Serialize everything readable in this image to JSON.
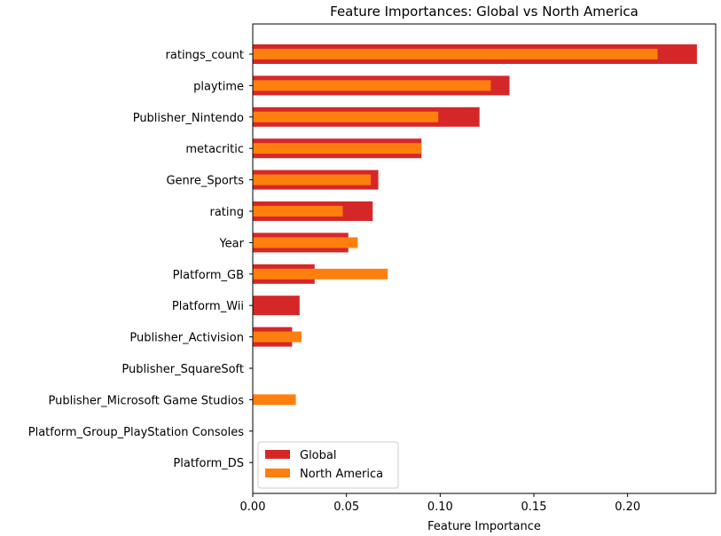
{
  "chart_data": {
    "type": "bar",
    "orientation": "horizontal",
    "title": "Feature Importances: Global vs North America",
    "xlabel": "Feature Importance",
    "ylabel": "",
    "xlim": [
      0,
      0.247
    ],
    "xticks": [
      "0.00",
      "0.05",
      "0.10",
      "0.15",
      "0.20"
    ],
    "xtick_values": [
      0,
      0.05,
      0.1,
      0.15,
      0.2
    ],
    "grid": false,
    "legend_position": "lower-left",
    "categories": [
      "ratings_count",
      "playtime",
      "Publisher_Nintendo",
      "metacritic",
      "Genre_Sports",
      "rating",
      "Year",
      "Platform_GB",
      "Platform_Wii",
      "Publisher_Activision",
      "Publisher_SquareSoft",
      "Publisher_Microsoft Game Studios",
      "Platform_Group_PlayStation Consoles",
      "Platform_DS"
    ],
    "series": [
      {
        "name": "Global",
        "color": "#d62728",
        "values": [
          0.237,
          0.137,
          0.121,
          0.09,
          0.067,
          0.064,
          0.051,
          0.033,
          0.025,
          0.021,
          0.0,
          0.0,
          0.0,
          0.0
        ]
      },
      {
        "name": "North America",
        "color": "#ff7f0e",
        "values": [
          0.216,
          0.127,
          0.099,
          0.09,
          0.063,
          0.048,
          0.056,
          0.072,
          0.0,
          0.026,
          0.0,
          0.023,
          0.0,
          0.0
        ]
      }
    ]
  }
}
